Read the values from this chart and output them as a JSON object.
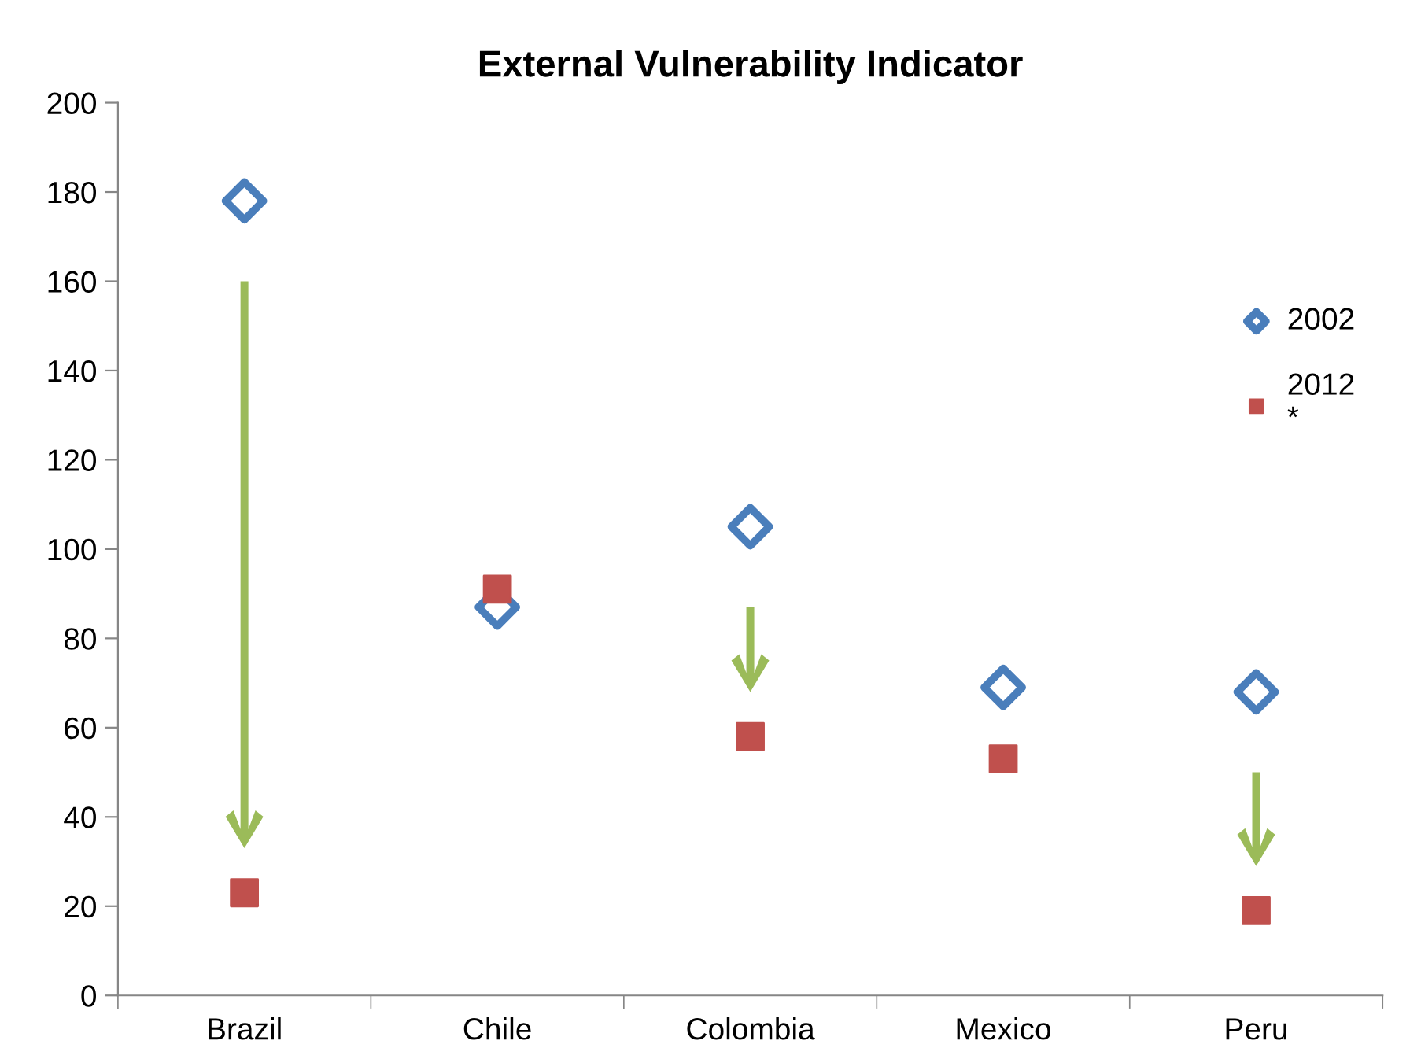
{
  "chart_data": {
    "type": "scatter",
    "title": "External Vulnerability Indicator",
    "categories": [
      "Brazil",
      "Chile",
      "Colombia",
      "Mexico",
      "Peru"
    ],
    "series": [
      {
        "name": "2002",
        "color": "#4a7ebb",
        "marker": "diamond",
        "values": [
          178,
          87,
          105,
          69,
          68
        ]
      },
      {
        "name": "2012\n*",
        "color": "#c0504d",
        "marker": "square",
        "values": [
          23,
          91,
          58,
          53,
          19
        ]
      }
    ],
    "ylim": [
      0,
      200
    ],
    "yticks": [
      0,
      20,
      40,
      60,
      80,
      100,
      120,
      140,
      160,
      180,
      200
    ],
    "grid": false,
    "legend": "right"
  }
}
